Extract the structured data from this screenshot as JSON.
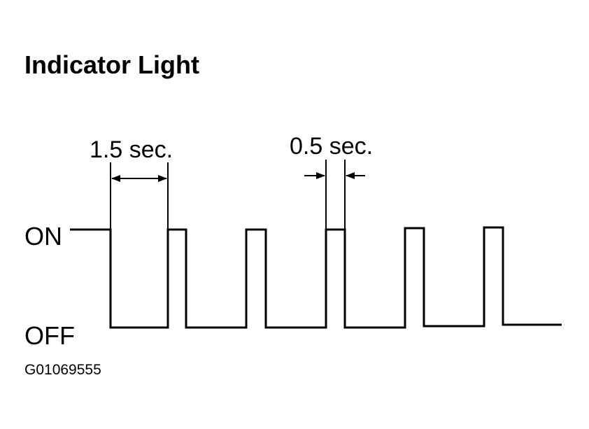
{
  "title": "Indicator Light",
  "labels": {
    "interval_long": "1.5 sec.",
    "interval_short": "0.5 sec.",
    "on": "ON",
    "off": "OFF"
  },
  "figure_id": "G01069555"
}
